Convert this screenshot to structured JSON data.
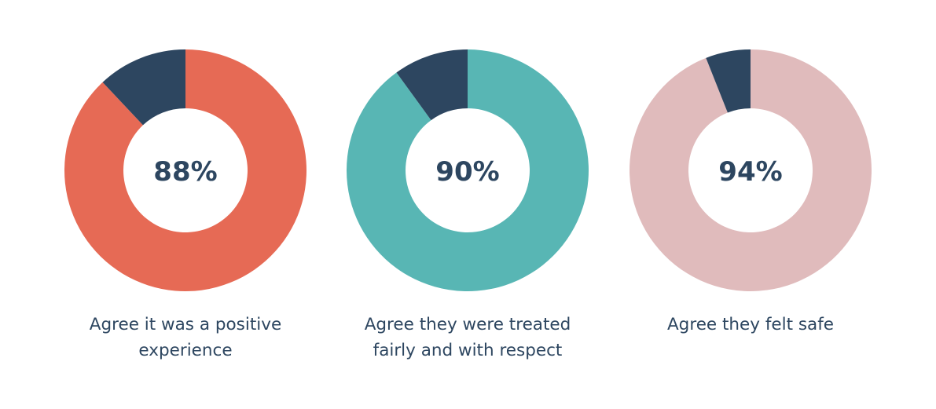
{
  "colors": {
    "remainder": "#2d4660",
    "text": "#2d4660",
    "background": "#ffffff"
  },
  "chart_data": [
    {
      "type": "pie",
      "variant": "donut",
      "center_label": "88%",
      "values": [
        88,
        12
      ],
      "colors": [
        "#e66a55",
        "#2d4660"
      ],
      "caption_lines": [
        "Agree it was a positive",
        "experience"
      ]
    },
    {
      "type": "pie",
      "variant": "donut",
      "center_label": "90%",
      "values": [
        90,
        10
      ],
      "colors": [
        "#58b6b4",
        "#2d4660"
      ],
      "caption_lines": [
        "Agree they were treated",
        "fairly and with respect"
      ]
    },
    {
      "type": "pie",
      "variant": "donut",
      "center_label": "94%",
      "values": [
        94,
        6
      ],
      "colors": [
        "#e0bbbc",
        "#2d4660"
      ],
      "caption_lines": [
        "Agree they felt safe"
      ]
    }
  ]
}
